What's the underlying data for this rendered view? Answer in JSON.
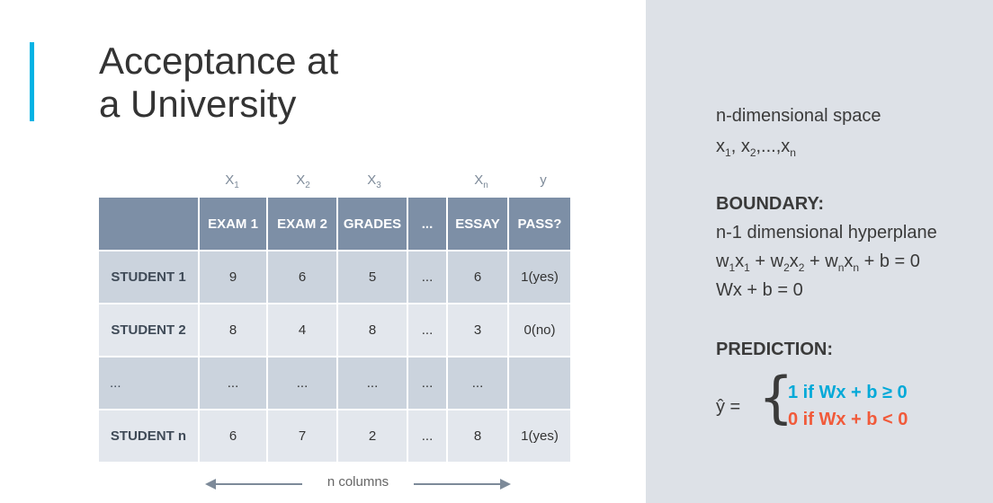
{
  "title": {
    "line1": "Acceptance at",
    "line2": "a University"
  },
  "variables": [
    {
      "base": "X",
      "sub": "1"
    },
    {
      "base": "X",
      "sub": "2"
    },
    {
      "base": "X",
      "sub": "3"
    },
    {
      "base": "X",
      "sub": "n"
    },
    {
      "base": "y",
      "sub": ""
    }
  ],
  "table": {
    "headers": [
      "",
      "EXAM 1",
      "EXAM 2",
      "GRADES",
      "...",
      "ESSAY",
      "PASS?"
    ],
    "rows": [
      [
        "STUDENT 1",
        "9",
        "6",
        "5",
        "...",
        "6",
        "1(yes)"
      ],
      [
        "STUDENT 2",
        "8",
        "4",
        "8",
        "...",
        "3",
        "0(no)"
      ],
      [
        "...",
        "...",
        "...",
        "...",
        "...",
        "...",
        ""
      ],
      [
        "STUDENT n",
        "6",
        "7",
        "2",
        "...",
        "8",
        "1(yes)"
      ]
    ]
  },
  "columns_label": "n columns",
  "right_panel": {
    "space_title": "n-dimensional space",
    "space_vars": {
      "x1": "x",
      "s1": "1",
      "x2": "x",
      "s2": "2",
      "dots": ",...,",
      "xn": "x",
      "sn": "n"
    },
    "boundary_heading": "BOUNDARY:",
    "boundary_desc": "n-1 dimensional hyperplane",
    "equation1": {
      "w1": "w",
      "s1": "1",
      "x1": "x",
      "sx1": "1",
      "plus1": " + ",
      "w2": "w",
      "s2": "2",
      "x2": "x",
      "sx2": "2",
      "plus2": " + ",
      "wn": "w",
      "sn": "n",
      "xn": "x",
      "sxn": "n",
      "rest": " + b = 0"
    },
    "equation2": "Wx + b = 0",
    "prediction_heading": "PREDICTION:",
    "y_hat": "ŷ =",
    "case1": "1 if Wx + b ≥ 0",
    "case2": "0 if Wx + b < 0"
  },
  "colors": {
    "accent": "#02b3e4",
    "case1": "#02a9d8",
    "case2": "#f15a3a",
    "header_bg": "#7d8fa6"
  }
}
